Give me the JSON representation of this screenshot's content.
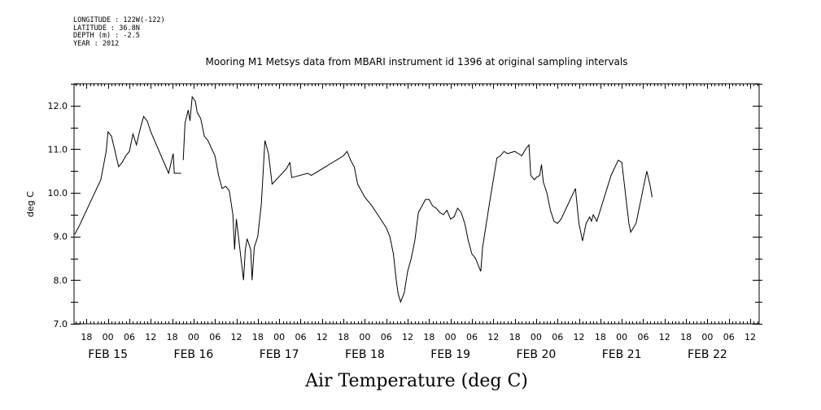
{
  "header": {
    "lines": [
      "LONGITUDE : 122W(-122)",
      "LATITUDE : 36.8N",
      "DEPTH (m) : -2.5",
      "YEAR : 2012"
    ]
  },
  "chart_data": {
    "type": "line",
    "title": "Mooring M1 Metsys data from MBARI instrument id 1396 at original sampling intervals",
    "xlabel": "Air Temperature (deg C)",
    "ylabel": "deg C",
    "ylim": [
      7.0,
      12.5
    ],
    "yticks": [
      "7.0",
      "8.0",
      "9.0",
      "10.0",
      "11.0",
      "12.0"
    ],
    "xlim_hours": [
      -9.5,
      182.5
    ],
    "xtick_labels": [
      "18",
      "00",
      "06",
      "12",
      "18",
      "00",
      "06",
      "12",
      "18",
      "00",
      "06",
      "12",
      "18",
      "00",
      "06",
      "12",
      "18",
      "00",
      "06",
      "12",
      "18",
      "00",
      "06",
      "12",
      "18",
      "00",
      "06",
      "12",
      "18",
      "00",
      "06",
      "12"
    ],
    "date_labels": [
      "FEB 15",
      "FEB 16",
      "FEB 17",
      "FEB 18",
      "FEB 19",
      "FEB 20",
      "FEB 21",
      "FEB 22"
    ],
    "x_unit": "hours since 2012-02-15 00:00",
    "grid": false,
    "series": [
      {
        "segments": [
          [
            [
              -9.3,
              9.05
            ],
            [
              -8,
              9.25
            ],
            [
              -6,
              9.6
            ],
            [
              -4,
              9.95
            ],
            [
              -2,
              10.3
            ],
            [
              -0.5,
              10.95
            ],
            [
              0,
              11.4
            ],
            [
              1,
              11.3
            ],
            [
              2,
              10.95
            ],
            [
              3,
              10.6
            ],
            [
              4,
              10.7
            ],
            [
              5,
              10.85
            ],
            [
              6,
              10.95
            ],
            [
              7,
              11.35
            ],
            [
              8,
              11.1
            ],
            [
              9,
              11.45
            ],
            [
              10,
              11.75
            ],
            [
              11,
              11.65
            ],
            [
              12,
              11.4
            ],
            [
              17,
              10.45
            ],
            [
              18,
              10.8
            ],
            [
              18.3,
              10.9
            ],
            [
              18.6,
              10.45
            ],
            [
              20.5,
              10.45
            ]
          ],
          [
            [
              21.1,
              10.75
            ],
            [
              21.6,
              11.6
            ],
            [
              22.5,
              11.9
            ],
            [
              23,
              11.65
            ],
            [
              23.6,
              12.2
            ],
            [
              24.5,
              12.1
            ],
            [
              25,
              11.85
            ],
            [
              26,
              11.7
            ],
            [
              27,
              11.3
            ],
            [
              28,
              11.2
            ],
            [
              30,
              10.85
            ],
            [
              31,
              10.4
            ],
            [
              32,
              10.1
            ],
            [
              33,
              10.15
            ],
            [
              34,
              10.05
            ],
            [
              35,
              9.5
            ],
            [
              35.5,
              8.7
            ],
            [
              36,
              9.4
            ],
            [
              37,
              8.7
            ],
            [
              38,
              8.0
            ],
            [
              38.5,
              8.7
            ],
            [
              39,
              8.95
            ],
            [
              40,
              8.7
            ],
            [
              40.4,
              8.0
            ],
            [
              41,
              8.75
            ],
            [
              42,
              9.0
            ],
            [
              43,
              9.75
            ],
            [
              44,
              11.2
            ],
            [
              45,
              10.9
            ],
            [
              46,
              10.2
            ],
            [
              50,
              10.55
            ],
            [
              51,
              10.7
            ]
          ],
          [
            [
              51,
              10.7
            ],
            [
              51.5,
              10.35
            ],
            [
              56,
              10.45
            ],
            [
              57,
              10.4
            ],
            [
              59,
              10.5
            ],
            [
              61,
              10.6
            ],
            [
              63,
              10.7
            ],
            [
              64,
              10.75
            ],
            [
              66,
              10.85
            ],
            [
              67,
              10.95
            ],
            [
              68,
              10.75
            ],
            [
              69,
              10.6
            ],
            [
              70,
              10.2
            ],
            [
              71,
              10.05
            ],
            [
              72,
              9.9
            ],
            [
              74,
              9.7
            ],
            [
              76,
              9.45
            ],
            [
              78,
              9.2
            ],
            [
              79,
              9.0
            ],
            [
              80,
              8.6
            ],
            [
              80.8,
              8.0
            ],
            [
              81.3,
              7.7
            ],
            [
              82,
              7.5
            ],
            [
              83,
              7.7
            ],
            [
              84,
              8.2
            ],
            [
              85,
              8.5
            ],
            [
              86,
              8.9
            ],
            [
              87,
              9.55
            ],
            [
              88,
              9.7
            ],
            [
              89,
              9.85
            ],
            [
              90,
              9.85
            ],
            [
              91,
              9.7
            ],
            [
              92,
              9.65
            ],
            [
              93,
              9.55
            ],
            [
              94,
              9.5
            ],
            [
              95,
              9.6
            ],
            [
              96,
              9.4
            ],
            [
              97,
              9.45
            ],
            [
              98,
              9.65
            ],
            [
              99,
              9.55
            ],
            [
              100,
              9.3
            ],
            [
              101,
              8.9
            ],
            [
              102,
              8.6
            ],
            [
              103,
              8.5
            ],
            [
              104,
              8.3
            ],
            [
              104.5,
              8.2
            ],
            [
              105,
              8.75
            ],
            [
              107,
              9.8
            ],
            [
              109,
              10.8
            ],
            [
              110,
              10.85
            ],
            [
              111,
              10.95
            ],
            [
              112,
              10.9
            ],
            [
              114,
              10.95
            ],
            [
              116,
              10.85
            ],
            [
              117,
              11.0
            ],
            [
              118,
              11.1
            ],
            [
              118.5,
              10.4
            ],
            [
              119.5,
              10.3
            ],
            [
              120,
              10.35
            ],
            [
              121,
              10.4
            ],
            [
              121.5,
              10.65
            ],
            [
              122,
              10.25
            ],
            [
              123,
              10.0
            ],
            [
              124,
              9.6
            ],
            [
              125,
              9.35
            ],
            [
              126,
              9.3
            ],
            [
              127,
              9.4
            ],
            [
              131,
              10.1
            ]
          ],
          [
            [
              131,
              10.1
            ],
            [
              132,
              9.3
            ],
            [
              133,
              8.9
            ],
            [
              134,
              9.3
            ],
            [
              135,
              9.45
            ],
            [
              135.5,
              9.35
            ],
            [
              136,
              9.5
            ],
            [
              137,
              9.35
            ],
            [
              141,
              10.4
            ],
            [
              143,
              10.75
            ],
            [
              144,
              10.7
            ],
            [
              146,
              9.3
            ],
            [
              146.5,
              9.1
            ],
            [
              148,
              9.3
            ],
            [
              151,
              10.5
            ],
            [
              152,
              10.15
            ],
            [
              152.5,
              9.9
            ]
          ]
        ]
      }
    ]
  }
}
